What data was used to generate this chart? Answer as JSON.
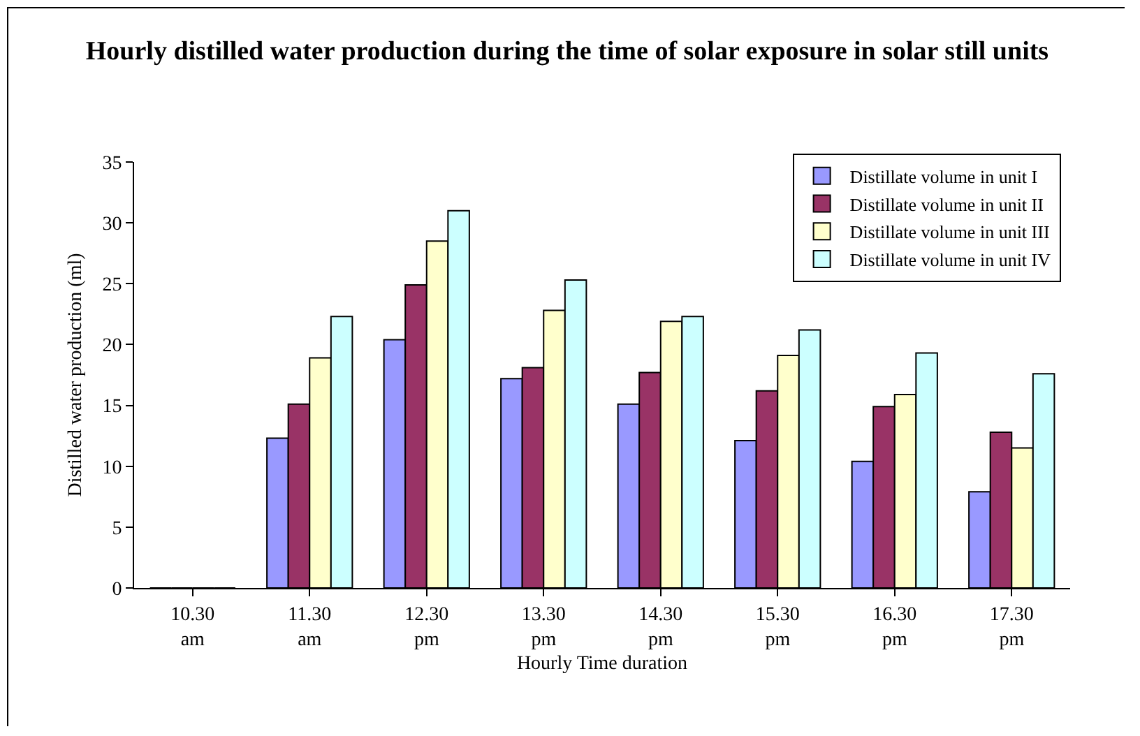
{
  "chart_data": {
    "type": "bar",
    "title": "Hourly distilled water production during the time of solar exposure in solar still units",
    "xlabel": "Hourly Time duration",
    "ylabel": "Distilled water production (ml)",
    "categories": [
      "10.30 am",
      "11.30 am",
      "12.30 pm",
      "13.30 pm",
      "14.30 pm",
      "15.30 pm",
      "16.30 pm",
      "17.30 pm"
    ],
    "series": [
      {
        "name": "Distillate volume in unit I",
        "color": "#9999ff",
        "values": [
          0,
          12.3,
          20.4,
          17.2,
          15.1,
          12.1,
          10.4,
          7.9
        ]
      },
      {
        "name": "Distillate volume in unit II",
        "color": "#993366",
        "values": [
          0,
          15.1,
          24.9,
          18.1,
          17.7,
          16.2,
          14.9,
          12.8
        ]
      },
      {
        "name": "Distillate volume in unit III",
        "color": "#ffffcc",
        "values": [
          0,
          18.9,
          28.5,
          22.8,
          21.9,
          19.1,
          15.9,
          11.5
        ]
      },
      {
        "name": "Distillate volume in unit IV",
        "color": "#ccffff",
        "values": [
          0,
          22.3,
          31.0,
          25.3,
          22.3,
          21.2,
          19.3,
          17.6
        ]
      }
    ],
    "ylim": [
      0,
      35
    ],
    "yticks": [
      0,
      5,
      10,
      15,
      20,
      25,
      30,
      35
    ],
    "grid": false,
    "legend": "top right"
  }
}
